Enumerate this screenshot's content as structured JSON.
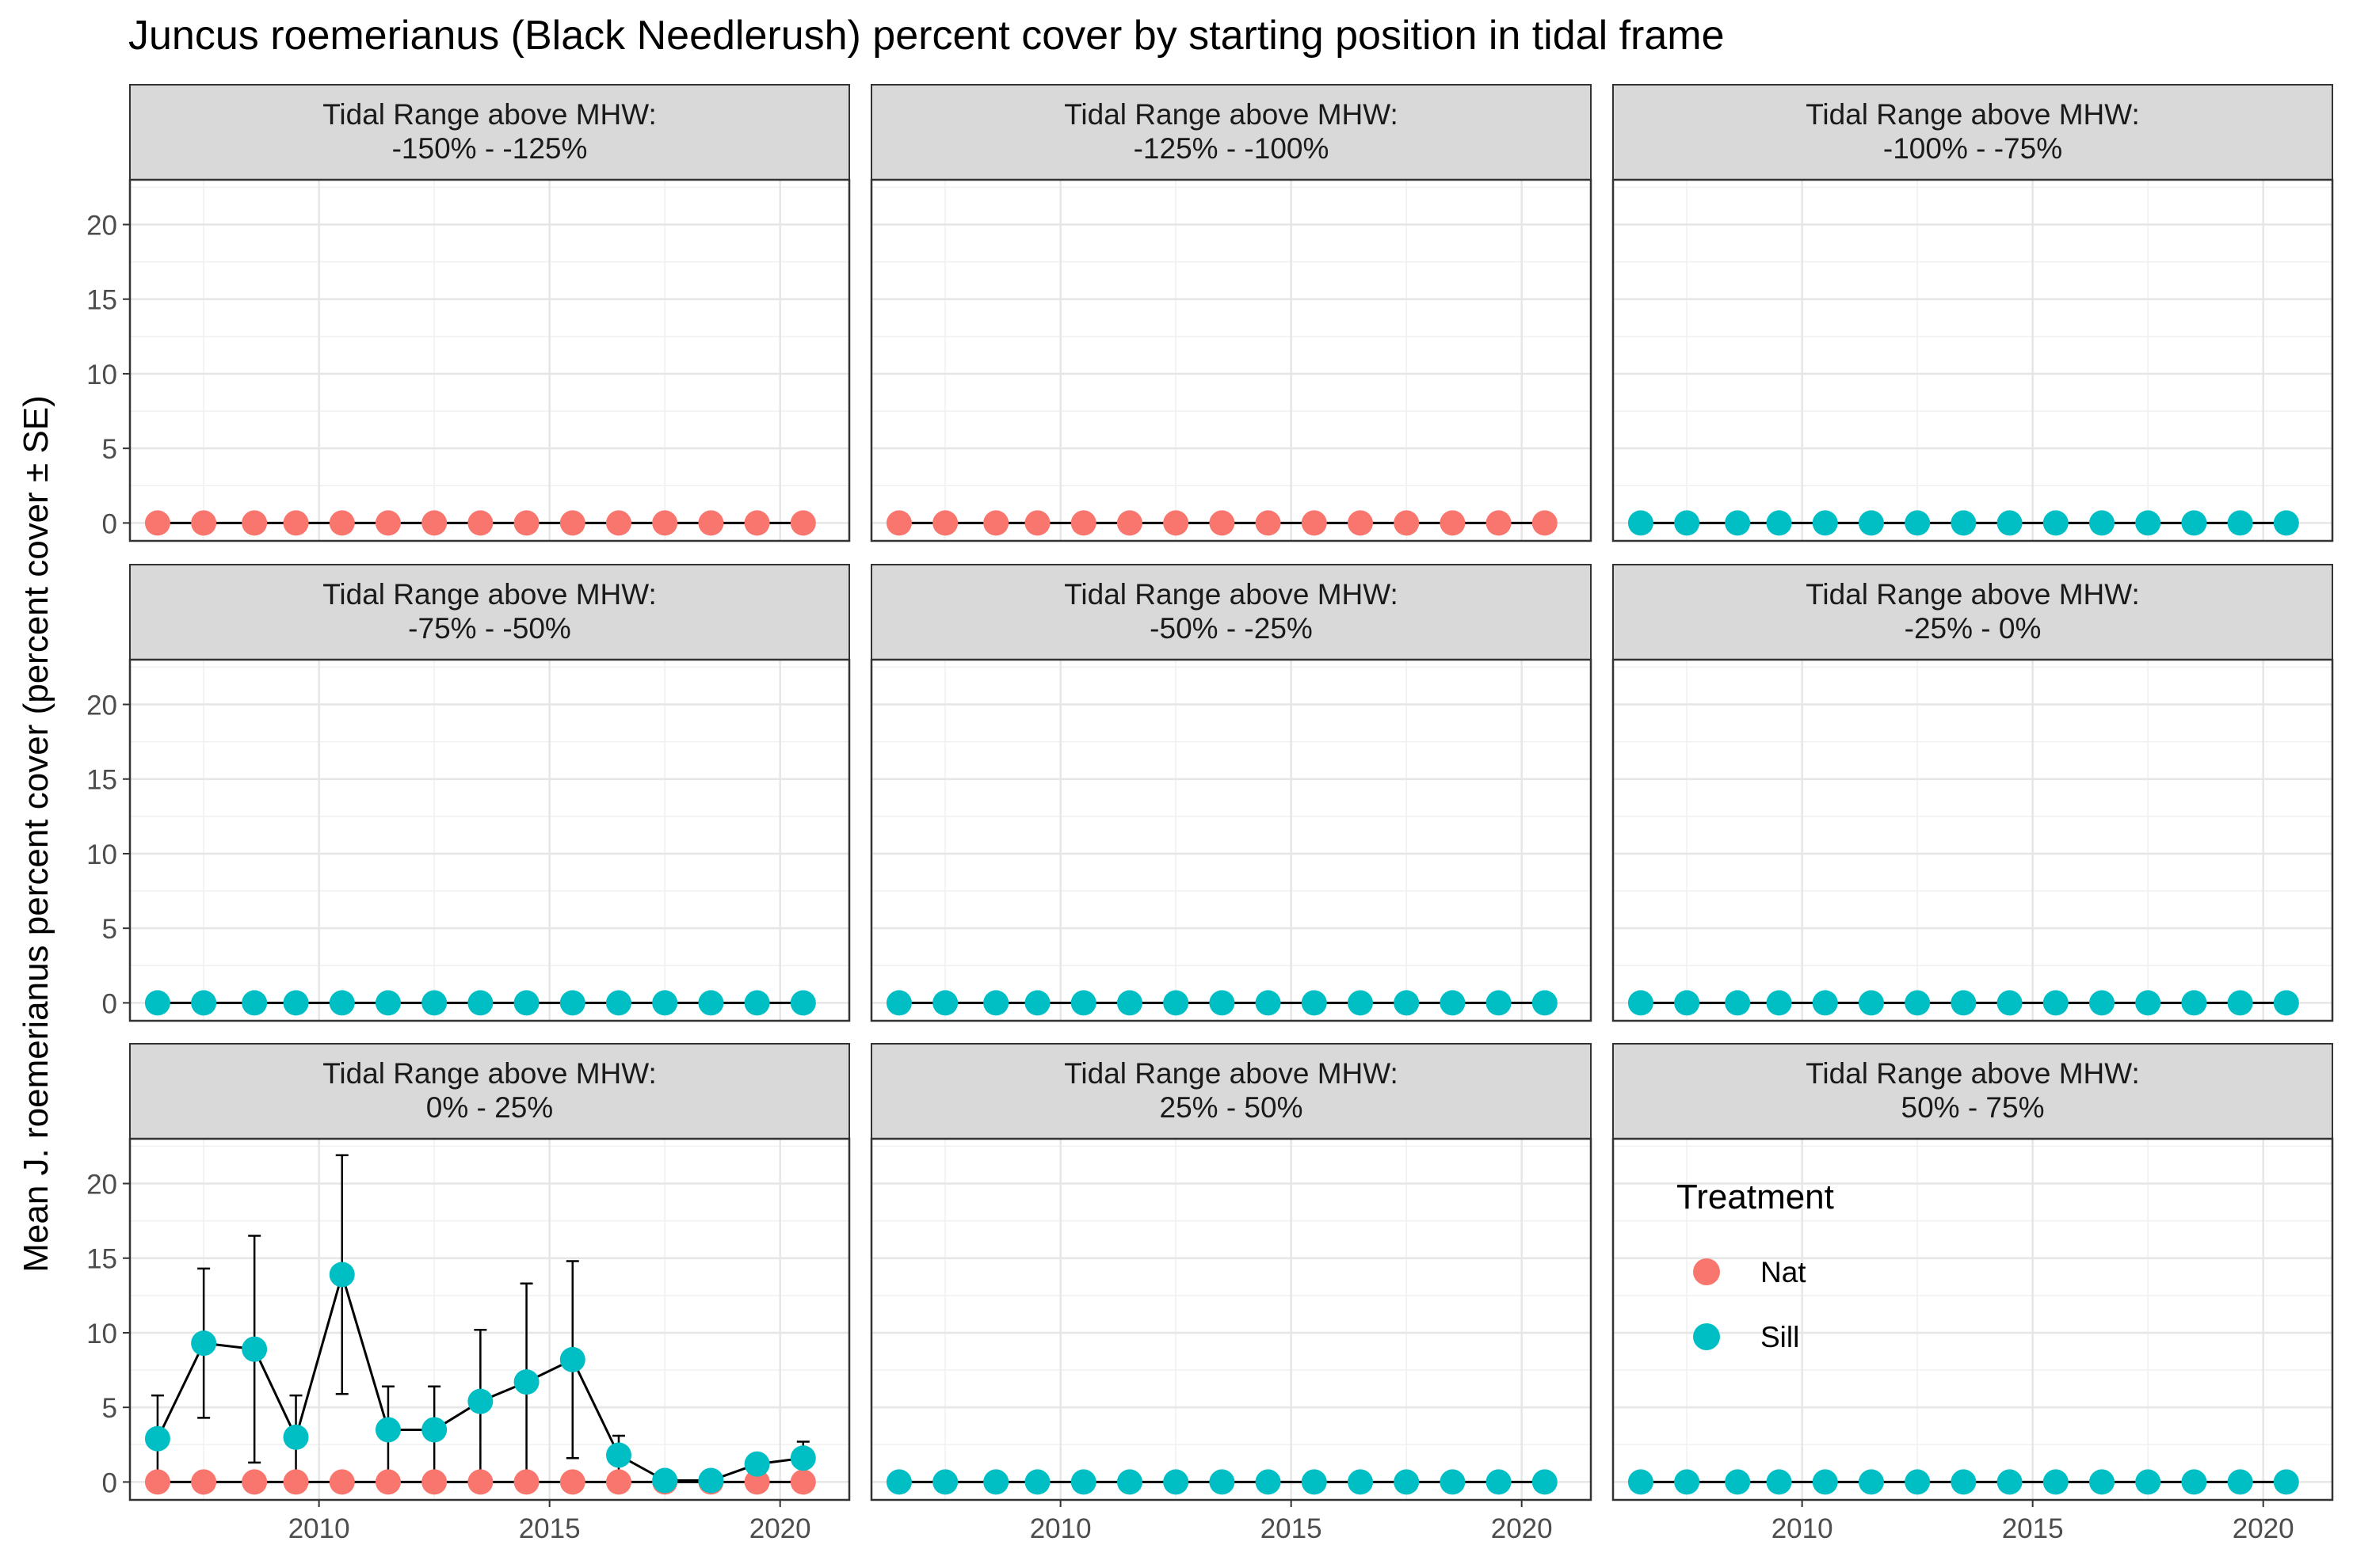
{
  "chart_data": {
    "type": "line",
    "title": "Juncus roemerianus (Black Needlerush) percent cover by starting position in tidal frame",
    "ylabel": "Mean J. roemerianus percent cover (percent cover ± SE)",
    "xlabel": "",
    "strip_label": "Tidal Range above MHW:",
    "x_ticks": [
      2010,
      2015,
      2020
    ],
    "y_ticks": [
      0,
      5,
      10,
      15,
      20
    ],
    "xlim": [
      2005.9,
      2021.5
    ],
    "ylim": [
      -1.2,
      23
    ],
    "grid": true,
    "legend": {
      "title": "Treatment",
      "placement": "inside-bottom-right-panel",
      "entries": [
        {
          "name": "Nat",
          "color": "#F8766D"
        },
        {
          "name": "Sill",
          "color": "#00BFC4"
        }
      ]
    },
    "colors": {
      "Nat": "#F8766D",
      "Sill": "#00BFC4"
    },
    "panels": [
      {
        "range": "-150%  -  -125%",
        "series": [
          {
            "name": "Nat",
            "x": [
              2006.5,
              2007.5,
              2008.6,
              2009.5,
              2010.5,
              2011.5,
              2012.5,
              2013.5,
              2014.5,
              2015.5,
              2016.5,
              2017.5,
              2018.5,
              2019.5,
              2020.5
            ],
            "y": [
              0,
              0,
              0,
              0,
              0,
              0,
              0,
              0,
              0,
              0,
              0,
              0,
              0,
              0,
              0
            ]
          }
        ]
      },
      {
        "range": "-125%  -  -100%",
        "series": [
          {
            "name": "Nat",
            "x": [
              2006.5,
              2007.5,
              2008.6,
              2009.5,
              2010.5,
              2011.5,
              2012.5,
              2013.5,
              2014.5,
              2015.5,
              2016.5,
              2017.5,
              2018.5,
              2019.5,
              2020.5
            ],
            "y": [
              0,
              0,
              0,
              0,
              0,
              0,
              0,
              0,
              0,
              0,
              0,
              0,
              0,
              0,
              0
            ]
          }
        ]
      },
      {
        "range": "-100%  -  -75%",
        "series": [
          {
            "name": "Sill",
            "x": [
              2006.5,
              2007.5,
              2008.6,
              2009.5,
              2010.5,
              2011.5,
              2012.5,
              2013.5,
              2014.5,
              2015.5,
              2016.5,
              2017.5,
              2018.5,
              2019.5,
              2020.5
            ],
            "y": [
              0,
              0,
              0,
              0,
              0,
              0,
              0,
              0,
              0,
              0,
              0,
              0,
              0,
              0,
              0
            ]
          }
        ]
      },
      {
        "range": "-75%  -  -50%",
        "series": [
          {
            "name": "Sill",
            "x": [
              2006.5,
              2007.5,
              2008.6,
              2009.5,
              2010.5,
              2011.5,
              2012.5,
              2013.5,
              2014.5,
              2015.5,
              2016.5,
              2017.5,
              2018.5,
              2019.5,
              2020.5
            ],
            "y": [
              0,
              0,
              0,
              0,
              0,
              0,
              0,
              0,
              0,
              0,
              0,
              0,
              0,
              0,
              0
            ]
          }
        ]
      },
      {
        "range": "-50%  -  -25%",
        "series": [
          {
            "name": "Sill",
            "x": [
              2006.5,
              2007.5,
              2008.6,
              2009.5,
              2010.5,
              2011.5,
              2012.5,
              2013.5,
              2014.5,
              2015.5,
              2016.5,
              2017.5,
              2018.5,
              2019.5,
              2020.5
            ],
            "y": [
              0,
              0,
              0,
              0,
              0,
              0,
              0,
              0,
              0,
              0,
              0,
              0,
              0,
              0,
              0
            ]
          }
        ]
      },
      {
        "range": "-25%  -  0%",
        "series": [
          {
            "name": "Sill",
            "x": [
              2006.5,
              2007.5,
              2008.6,
              2009.5,
              2010.5,
              2011.5,
              2012.5,
              2013.5,
              2014.5,
              2015.5,
              2016.5,
              2017.5,
              2018.5,
              2019.5,
              2020.5
            ],
            "y": [
              0,
              0,
              0,
              0,
              0,
              0,
              0,
              0,
              0,
              0,
              0,
              0,
              0,
              0,
              0
            ]
          }
        ]
      },
      {
        "range": "0%  -  25%",
        "series": [
          {
            "name": "Nat",
            "x": [
              2006.5,
              2007.5,
              2008.6,
              2009.5,
              2010.5,
              2011.5,
              2012.5,
              2013.5,
              2014.5,
              2015.5,
              2016.5,
              2017.5,
              2018.5,
              2019.5,
              2020.5
            ],
            "y": [
              0,
              0,
              0,
              0,
              0,
              0,
              0,
              0,
              0,
              0,
              0,
              0,
              0,
              0,
              0
            ]
          },
          {
            "name": "Sill",
            "x": [
              2006.5,
              2007.5,
              2008.6,
              2009.5,
              2010.5,
              2011.5,
              2012.5,
              2013.5,
              2014.5,
              2015.5,
              2016.5,
              2017.5,
              2018.5,
              2019.5,
              2020.5
            ],
            "y": [
              2.9,
              9.3,
              8.9,
              3.0,
              13.9,
              3.5,
              3.5,
              5.4,
              6.7,
              8.2,
              1.8,
              0.1,
              0.1,
              1.2,
              1.6
            ],
            "err": [
              2.9,
              5.0,
              7.6,
              2.8,
              8.0,
              2.9,
              2.9,
              4.8,
              6.6,
              6.6,
              1.3,
              0,
              0,
              0.6,
              1.1
            ]
          }
        ]
      },
      {
        "range": "25%  -  50%",
        "series": [
          {
            "name": "Sill",
            "x": [
              2006.5,
              2007.5,
              2008.6,
              2009.5,
              2010.5,
              2011.5,
              2012.5,
              2013.5,
              2014.5,
              2015.5,
              2016.5,
              2017.5,
              2018.5,
              2019.5,
              2020.5
            ],
            "y": [
              0,
              0,
              0,
              0,
              0,
              0,
              0,
              0,
              0,
              0,
              0,
              0,
              0,
              0,
              0
            ]
          }
        ]
      },
      {
        "range": "50%  -  75%",
        "series": [
          {
            "name": "Sill",
            "x": [
              2006.5,
              2007.5,
              2008.6,
              2009.5,
              2010.5,
              2011.5,
              2012.5,
              2013.5,
              2014.5,
              2015.5,
              2016.5,
              2017.5,
              2018.5,
              2019.5,
              2020.5
            ],
            "y": [
              0,
              0,
              0,
              0,
              0,
              0,
              0,
              0,
              0,
              0,
              0,
              0,
              0,
              0,
              0
            ]
          }
        ]
      }
    ]
  }
}
